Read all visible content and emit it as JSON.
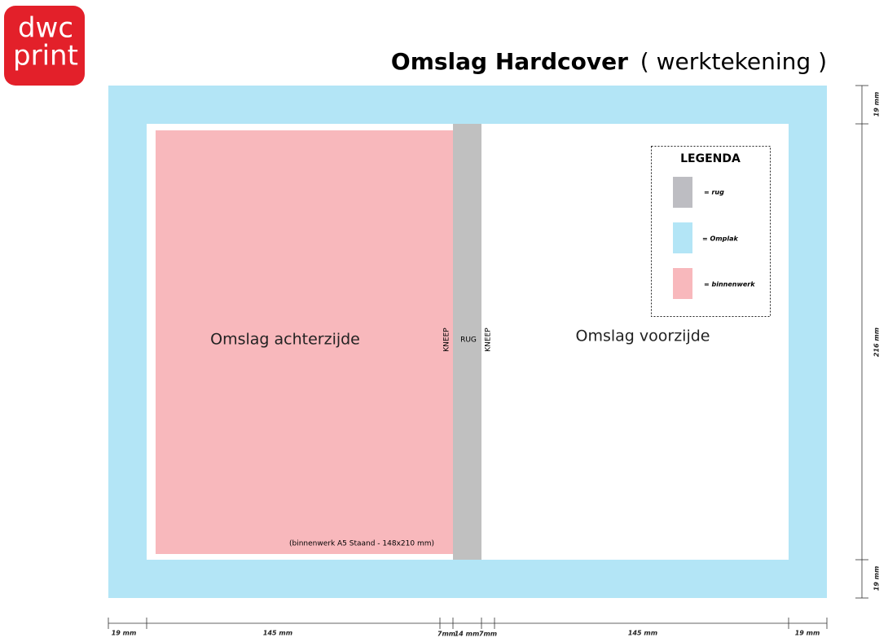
{
  "logo": {
    "line1": "dwc",
    "line2": "print"
  },
  "header": {
    "title": "Omslag Hardcover",
    "subtitle": "( werktekening )"
  },
  "panels": {
    "back": "Omslag achterzijde",
    "front": "Omslag voorzijde",
    "spine": "RUG",
    "hinge_left": "KNEEP",
    "hinge_right": "KNEEP",
    "note": "(binnenwerk A5 Staand - 148x210 mm)"
  },
  "legend": {
    "title": "LEGENDA",
    "items": [
      "= rug",
      "= Omplak",
      "= binnenwerk"
    ]
  },
  "dimensions": {
    "horizontal": [
      "19 mm",
      "145 mm",
      "7mm",
      "14 mm",
      "7mm",
      "145 mm",
      "19 mm"
    ],
    "vertical": [
      "19 mm",
      "216 mm",
      "19 mm"
    ]
  }
}
